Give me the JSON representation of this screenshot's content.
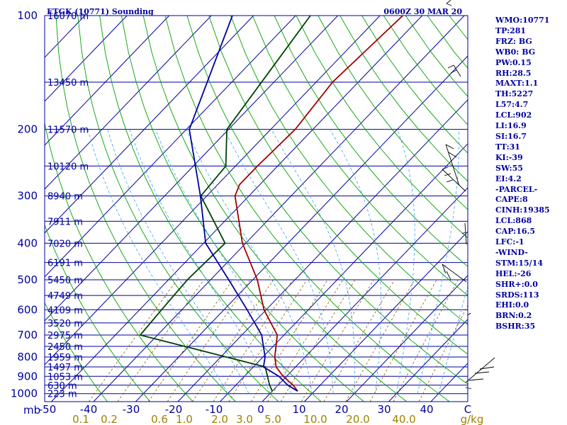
{
  "header": {
    "station": "ETGK (10771) Sounding",
    "time": "0600Z 30 MAR 20"
  },
  "indices": [
    "WMO:10771",
    "TP:281",
    "FRZ: BG",
    "WB0: BG",
    "PW:0.15",
    "RH:28.5",
    "MAXT:1.1",
    "TH:5227",
    "L57:4.7",
    "LCL:902",
    "LI:16.9",
    "SI:16.7",
    "TT:31",
    "KI:-39",
    "SW:55",
    "EI:4.2",
    "-PARCEL-",
    "CAPE:8",
    "CINH:19385",
    "LCL:868",
    "CAP:16.5",
    "LFC:-1",
    "-WIND-",
    "STM:15/14",
    "HEL:-26",
    "SHR+:0.0",
    "SRDS:113",
    "EHI:0.0",
    "BRN:0.2",
    "BSHR:35"
  ],
  "chart_data": {
    "type": "line",
    "title": "ETGK (10771) Sounding 0600Z 30 MAR 20",
    "x_unit_label": "C",
    "y_unit_label": "mb",
    "pressure_levels": [
      100,
      200,
      300,
      400,
      500,
      600,
      700,
      800,
      900,
      1000
    ],
    "pressure_tick_labels": [
      "100",
      "200",
      "300",
      "400",
      "500",
      "600",
      "700",
      "800",
      "900",
      "1000"
    ],
    "temp_tick_labels": [
      "-50",
      "-40",
      "-30",
      "-20",
      "-10",
      "0",
      "10",
      "20",
      "30",
      "40",
      "C"
    ],
    "mixing_ratio_labels": [
      "0.1",
      "0.2",
      "0.6",
      "1.0",
      "2.0",
      "3.0",
      "5.0",
      "10.0",
      "20.0",
      "40.0",
      "g/kg"
    ],
    "height_levels": [
      {
        "p": 100,
        "label": "16070 m"
      },
      {
        "p": 150,
        "label": "13450 m"
      },
      {
        "p": 200,
        "label": "11570 m"
      },
      {
        "p": 250,
        "label": "10120 m"
      },
      {
        "p": 300,
        "label": "8940 m"
      },
      {
        "p": 350,
        "label": "7911 m"
      },
      {
        "p": 400,
        "label": "7020 m"
      },
      {
        "p": 450,
        "label": "6191 m"
      },
      {
        "p": 500,
        "label": "5450 m"
      },
      {
        "p": 550,
        "label": "4749 m"
      },
      {
        "p": 600,
        "label": "4109 m"
      },
      {
        "p": 650,
        "label": "3520 m"
      },
      {
        "p": 700,
        "label": "2975 m"
      },
      {
        "p": 750,
        "label": "2450 m"
      },
      {
        "p": 800,
        "label": "1959 m"
      },
      {
        "p": 850,
        "label": "1497 m"
      },
      {
        "p": 900,
        "label": "1053 m"
      },
      {
        "p": 950,
        "label": "630 m"
      },
      {
        "p": 1000,
        "label": "223 m"
      }
    ],
    "series": [
      {
        "color": "#a00000",
        "points": [
          [
            100,
            -54.6
          ],
          [
            150,
            -56.1
          ],
          [
            200,
            -54.2
          ],
          [
            250,
            -54.8
          ],
          [
            280,
            -54.8
          ],
          [
            300,
            -53.3
          ],
          [
            400,
            -40.8
          ],
          [
            500,
            -28.9
          ],
          [
            600,
            -20.5
          ],
          [
            700,
            -11.6
          ],
          [
            800,
            -7.2
          ],
          [
            850,
            -4.6
          ],
          [
            900,
            -0.8
          ],
          [
            950,
            3.6
          ],
          [
            985,
            6.0
          ]
        ]
      },
      {
        "color": "#004000",
        "points": [
          [
            100,
            -76.5
          ],
          [
            200,
            -70.4
          ],
          [
            250,
            -62.3
          ],
          [
            300,
            -61.4
          ],
          [
            400,
            -44.9
          ],
          [
            500,
            -45.5
          ],
          [
            600,
            -44.8
          ],
          [
            700,
            -44.1
          ],
          [
            850,
            -7.2
          ],
          [
            950,
            -2.0
          ],
          [
            985,
            0.0
          ]
        ]
      },
      {
        "color": "#0000a0",
        "points": [
          [
            100,
            -95.0
          ],
          [
            200,
            -79.3
          ],
          [
            300,
            -61.5
          ],
          [
            400,
            -49.5
          ],
          [
            500,
            -35.7
          ],
          [
            600,
            -24.5
          ],
          [
            700,
            -15.3
          ],
          [
            800,
            -9.5
          ],
          [
            850,
            -7.6
          ],
          [
            900,
            -1.8
          ],
          [
            950,
            2.3
          ],
          [
            985,
            6.0
          ]
        ]
      }
    ]
  }
}
